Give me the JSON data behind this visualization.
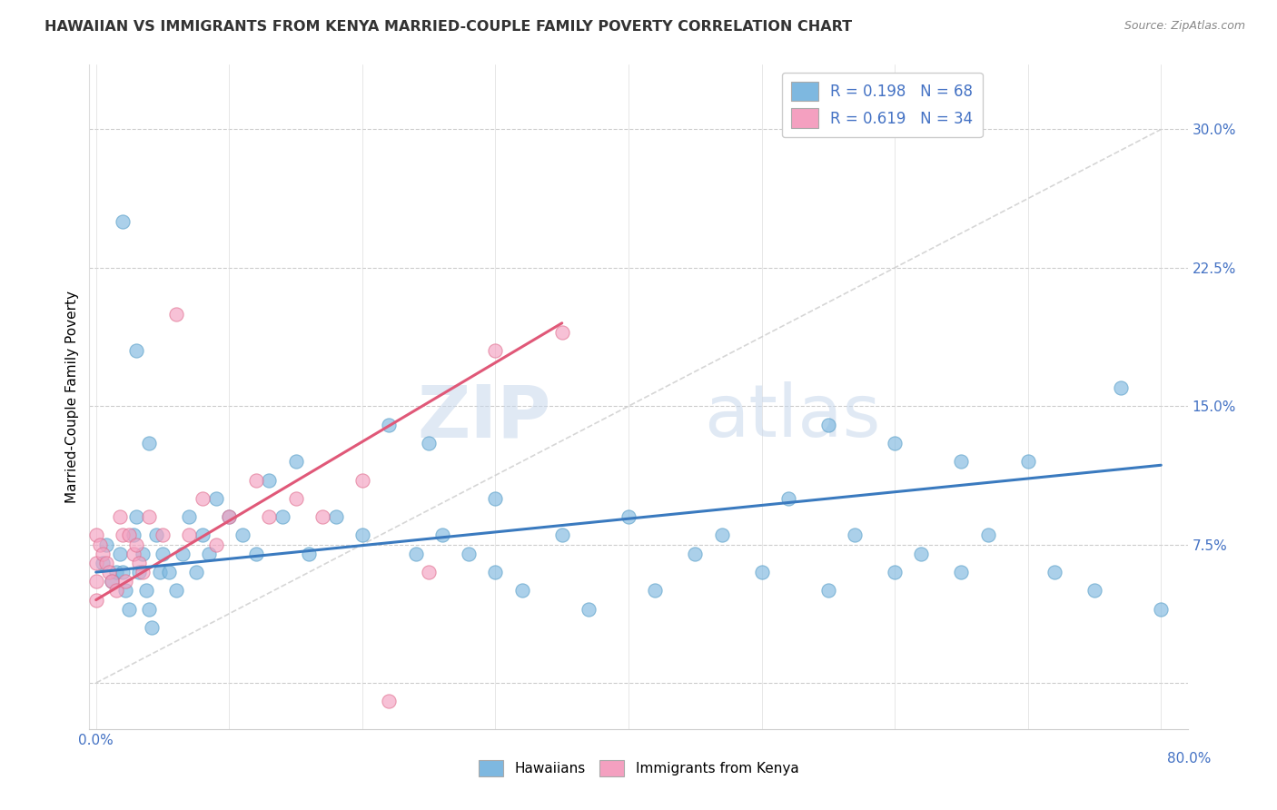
{
  "title": "HAWAIIAN VS IMMIGRANTS FROM KENYA MARRIED-COUPLE FAMILY POVERTY CORRELATION CHART",
  "source": "Source: ZipAtlas.com",
  "ylabel": "Married-Couple Family Poverty",
  "xlim": [
    -0.005,
    0.82
  ],
  "ylim": [
    -0.025,
    0.335
  ],
  "yticks": [
    0.0,
    0.075,
    0.15,
    0.225,
    0.3
  ],
  "ytick_labels": [
    "",
    "7.5%",
    "15.0%",
    "22.5%",
    "30.0%"
  ],
  "xticks": [
    0.0,
    0.1,
    0.2,
    0.3,
    0.4,
    0.5,
    0.6,
    0.7,
    0.8
  ],
  "hawaiian_color": "#7eb8e0",
  "hawaii_edge_color": "#5a9fc8",
  "kenya_color": "#f4a0c0",
  "kenya_edge_color": "#e07090",
  "trend_hawaiian_color": "#3a7abf",
  "trend_kenya_color": "#e05878",
  "dashed_line_color": "#cccccc",
  "legend_R_hawaii": "R = 0.198",
  "legend_N_hawaii": "N = 68",
  "legend_R_kenya": "R = 0.619",
  "legend_N_kenya": "N = 34",
  "hawaiian_x": [
    0.005,
    0.008,
    0.012,
    0.015,
    0.018,
    0.02,
    0.022,
    0.025,
    0.028,
    0.03,
    0.032,
    0.035,
    0.038,
    0.04,
    0.042,
    0.045,
    0.048,
    0.05,
    0.055,
    0.06,
    0.065,
    0.07,
    0.075,
    0.08,
    0.085,
    0.09,
    0.1,
    0.11,
    0.12,
    0.13,
    0.14,
    0.15,
    0.16,
    0.18,
    0.2,
    0.22,
    0.24,
    0.26,
    0.28,
    0.3,
    0.32,
    0.35,
    0.37,
    0.4,
    0.42,
    0.45,
    0.47,
    0.5,
    0.52,
    0.55,
    0.57,
    0.6,
    0.62,
    0.65,
    0.67,
    0.7,
    0.72,
    0.75,
    0.77,
    0.8,
    0.02,
    0.03,
    0.04,
    0.25,
    0.3,
    0.55,
    0.6,
    0.65
  ],
  "hawaiian_y": [
    0.065,
    0.075,
    0.055,
    0.06,
    0.07,
    0.06,
    0.05,
    0.04,
    0.08,
    0.09,
    0.06,
    0.07,
    0.05,
    0.04,
    0.03,
    0.08,
    0.06,
    0.07,
    0.06,
    0.05,
    0.07,
    0.09,
    0.06,
    0.08,
    0.07,
    0.1,
    0.09,
    0.08,
    0.07,
    0.11,
    0.09,
    0.12,
    0.07,
    0.09,
    0.08,
    0.14,
    0.07,
    0.08,
    0.07,
    0.06,
    0.05,
    0.08,
    0.04,
    0.09,
    0.05,
    0.07,
    0.08,
    0.06,
    0.1,
    0.05,
    0.08,
    0.06,
    0.07,
    0.06,
    0.08,
    0.12,
    0.06,
    0.05,
    0.16,
    0.04,
    0.25,
    0.18,
    0.13,
    0.13,
    0.1,
    0.14,
    0.13,
    0.12
  ],
  "kenya_x": [
    0.0,
    0.0,
    0.0,
    0.0,
    0.003,
    0.005,
    0.008,
    0.01,
    0.012,
    0.015,
    0.018,
    0.02,
    0.022,
    0.025,
    0.028,
    0.03,
    0.032,
    0.035,
    0.04,
    0.05,
    0.06,
    0.07,
    0.08,
    0.09,
    0.1,
    0.12,
    0.13,
    0.15,
    0.17,
    0.2,
    0.22,
    0.25,
    0.3,
    0.35
  ],
  "kenya_y": [
    0.08,
    0.065,
    0.055,
    0.045,
    0.075,
    0.07,
    0.065,
    0.06,
    0.055,
    0.05,
    0.09,
    0.08,
    0.055,
    0.08,
    0.07,
    0.075,
    0.065,
    0.06,
    0.09,
    0.08,
    0.2,
    0.08,
    0.1,
    0.075,
    0.09,
    0.11,
    0.09,
    0.1,
    0.09,
    0.11,
    -0.01,
    0.06,
    0.18,
    0.19
  ],
  "hawaii_trend_x": [
    0.0,
    0.8
  ],
  "hawaii_trend_y": [
    0.06,
    0.118
  ],
  "kenya_trend_x": [
    0.0,
    0.35
  ],
  "kenya_trend_y": [
    0.045,
    0.195
  ],
  "dashed_trend_x": [
    0.0,
    0.8
  ],
  "dashed_trend_y": [
    0.0,
    0.3
  ]
}
